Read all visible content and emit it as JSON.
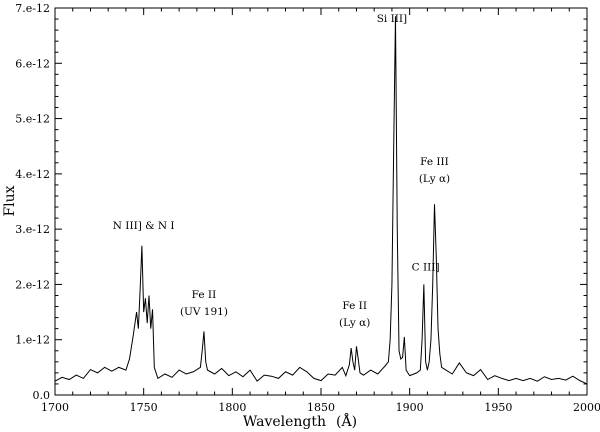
{
  "chart_data": {
    "type": "line",
    "xlabel": "Wavelength",
    "xlabel_unit": "(Å)",
    "ylabel": "Flux",
    "xlim": [
      1700,
      2000
    ],
    "ylim": [
      0,
      7e-12
    ],
    "grid": false,
    "x_ticks": [
      1700,
      1750,
      1800,
      1850,
      1900,
      1950,
      2000
    ],
    "x_tick_labels": [
      "1700",
      "1750",
      "1800",
      "1850",
      "1900",
      "1950",
      "2000"
    ],
    "y_ticks": [
      0,
      1e-12,
      2e-12,
      3e-12,
      4e-12,
      5e-12,
      6e-12,
      7e-12
    ],
    "y_tick_labels": [
      "0.0",
      "1.e-12",
      "2.e-12",
      "3.e-12",
      "4.e-12",
      "5.e-12",
      "6.e-12",
      "7.e-12"
    ],
    "series": [
      {
        "color": "#000000",
        "x": [
          1700,
          1704,
          1708,
          1712,
          1716,
          1720,
          1724,
          1728,
          1732,
          1736,
          1740,
          1742,
          1744,
          1746,
          1747,
          1748,
          1749,
          1750,
          1751,
          1752,
          1753,
          1754,
          1755,
          1756,
          1758,
          1762,
          1766,
          1770,
          1774,
          1778,
          1782,
          1783,
          1784,
          1785,
          1786,
          1790,
          1794,
          1798,
          1802,
          1806,
          1810,
          1814,
          1818,
          1822,
          1826,
          1830,
          1834,
          1838,
          1842,
          1846,
          1850,
          1854,
          1858,
          1862,
          1864,
          1866,
          1867,
          1868,
          1869,
          1870,
          1871,
          1872,
          1874,
          1878,
          1882,
          1886,
          1888,
          1889,
          1890,
          1891,
          1892,
          1893,
          1894,
          1895,
          1896,
          1897,
          1898,
          1900,
          1904,
          1906,
          1907,
          1908,
          1909,
          1910,
          1911,
          1912,
          1913,
          1914,
          1915,
          1916,
          1917,
          1918,
          1920,
          1924,
          1928,
          1932,
          1936,
          1940,
          1944,
          1948,
          1952,
          1956,
          1960,
          1964,
          1968,
          1972,
          1976,
          1980,
          1984,
          1988,
          1992,
          1996,
          2000
        ],
        "y": [
          2.5e-13,
          3.2e-13,
          2.8e-13,
          3.6e-13,
          3e-13,
          4.6e-13,
          4e-13,
          5e-13,
          4.3e-13,
          5e-13,
          4.5e-13,
          6.5e-13,
          1.05e-12,
          1.5e-12,
          1.2e-12,
          1.9e-12,
          2.7e-12,
          1.5e-12,
          1.75e-12,
          1.3e-12,
          1.8e-12,
          1.2e-12,
          1.55e-12,
          5e-13,
          3e-13,
          3.8e-13,
          3.2e-13,
          4.5e-13,
          3.8e-13,
          4.2e-13,
          5e-13,
          8e-13,
          1.15e-12,
          6e-13,
          4.5e-13,
          3.8e-13,
          4.8e-13,
          3.5e-13,
          4.2e-13,
          3.3e-13,
          4.5e-13,
          2.5e-13,
          3.6e-13,
          3.4e-13,
          3e-13,
          4.2e-13,
          3.6e-13,
          5e-13,
          4.2e-13,
          3e-13,
          2.6e-13,
          3.8e-13,
          3.6e-13,
          5e-13,
          3.5e-13,
          5.5e-13,
          8.5e-13,
          6e-13,
          4.5e-13,
          8.8e-13,
          6.5e-13,
          4e-13,
          3.6e-13,
          4.5e-13,
          3.8e-13,
          5.2e-13,
          6e-13,
          1e-12,
          2e-12,
          4.5e-12,
          6.85e-12,
          3e-12,
          8e-13,
          6.5e-13,
          6.8e-13,
          1.05e-12,
          4.5e-13,
          3.5e-13,
          4e-13,
          4.5e-13,
          1e-12,
          2e-12,
          6e-13,
          4.5e-13,
          6e-13,
          1e-12,
          2e-12,
          3.45e-12,
          2.5e-12,
          1.2e-12,
          7.5e-13,
          5e-13,
          4.6e-13,
          3.8e-13,
          5.8e-13,
          4e-13,
          3.5e-13,
          4.6e-13,
          2.8e-13,
          3.5e-13,
          3e-13,
          2.6e-13,
          3e-13,
          2.6e-13,
          3e-13,
          2.5e-13,
          3.3e-13,
          2.8e-13,
          3e-13,
          2.7e-13,
          3.4e-13,
          2.6e-13,
          2e-13
        ]
      }
    ],
    "annotations": [
      {
        "lines": [
          "N III] & N I"
        ],
        "x": 1750,
        "y": 3e-12
      },
      {
        "lines": [
          "Fe II",
          "(UV 191)"
        ],
        "x": 1784,
        "y": 1.45e-12
      },
      {
        "lines": [
          "Fe II",
          "(Ly α)"
        ],
        "x": 1869,
        "y": 1.25e-12
      },
      {
        "lines": [
          "Si III]"
        ],
        "x": 1890,
        "y": 6.75e-12
      },
      {
        "lines": [
          "C III]"
        ],
        "x": 1909,
        "y": 2.25e-12
      },
      {
        "lines": [
          "Fe III",
          "(Ly α)"
        ],
        "x": 1914,
        "y": 3.85e-12
      }
    ]
  }
}
